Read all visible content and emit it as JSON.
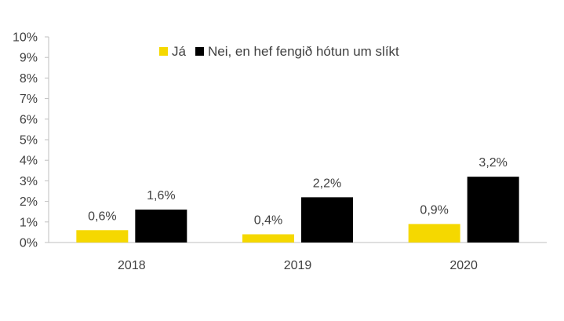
{
  "chart_data": {
    "type": "bar",
    "categories": [
      "2018",
      "2019",
      "2020"
    ],
    "series": [
      {
        "name": "Já",
        "color": "#f5d800",
        "values": [
          0.6,
          0.4,
          0.9
        ],
        "labels": [
          "0,6%",
          "0,4%",
          "0,9%"
        ]
      },
      {
        "name": "Nei, en hef fengið hótun um slíkt",
        "color": "#000000",
        "values": [
          1.6,
          2.2,
          3.2
        ],
        "labels": [
          "1,6%",
          "2,2%",
          "3,2%"
        ]
      }
    ],
    "ylim": [
      0,
      10
    ],
    "yticks": [
      "0%",
      "1%",
      "2%",
      "3%",
      "4%",
      "5%",
      "6%",
      "7%",
      "8%",
      "9%",
      "10%"
    ],
    "title": "",
    "xlabel": "",
    "ylabel": "",
    "legend_position": "top",
    "grid": false
  }
}
